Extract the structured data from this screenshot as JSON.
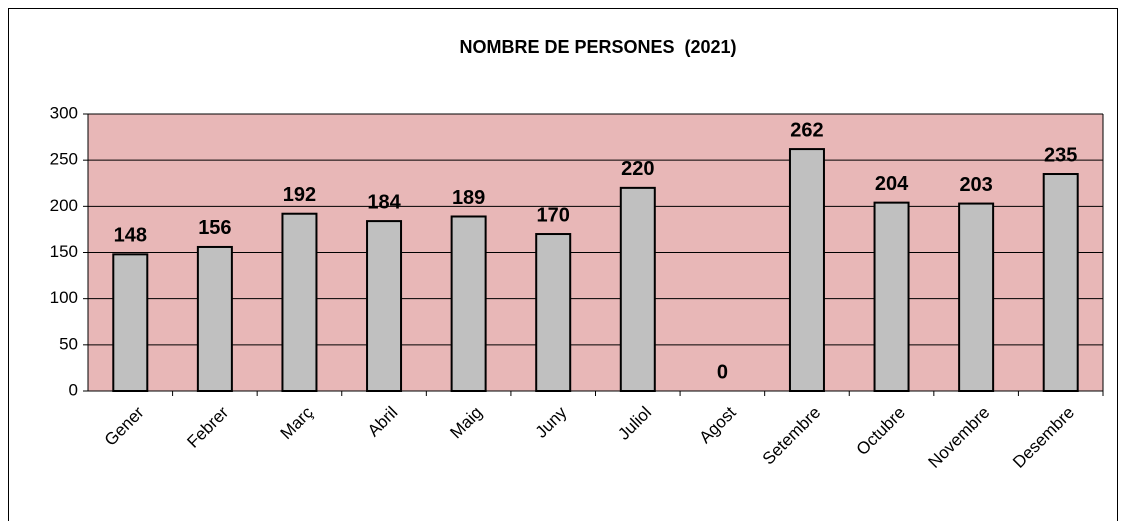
{
  "chart_data": {
    "type": "bar",
    "title": "NOMBRE DE PERSONES  (2021)",
    "categories": [
      "Gener",
      "Febrer",
      "Març",
      "Abril",
      "Maig",
      "Juny",
      "Juliol",
      "Agost",
      "Setembre",
      "Octubre",
      "Novembre",
      "Desembre"
    ],
    "values": [
      148,
      156,
      192,
      184,
      189,
      170,
      220,
      0,
      262,
      204,
      203,
      235
    ],
    "color": "#c0c0c0",
    "plot_background": "#e8b7b7",
    "ylim": [
      0,
      300
    ],
    "yticks": [
      0,
      50,
      100,
      150,
      200,
      250,
      300
    ],
    "grid": true
  }
}
